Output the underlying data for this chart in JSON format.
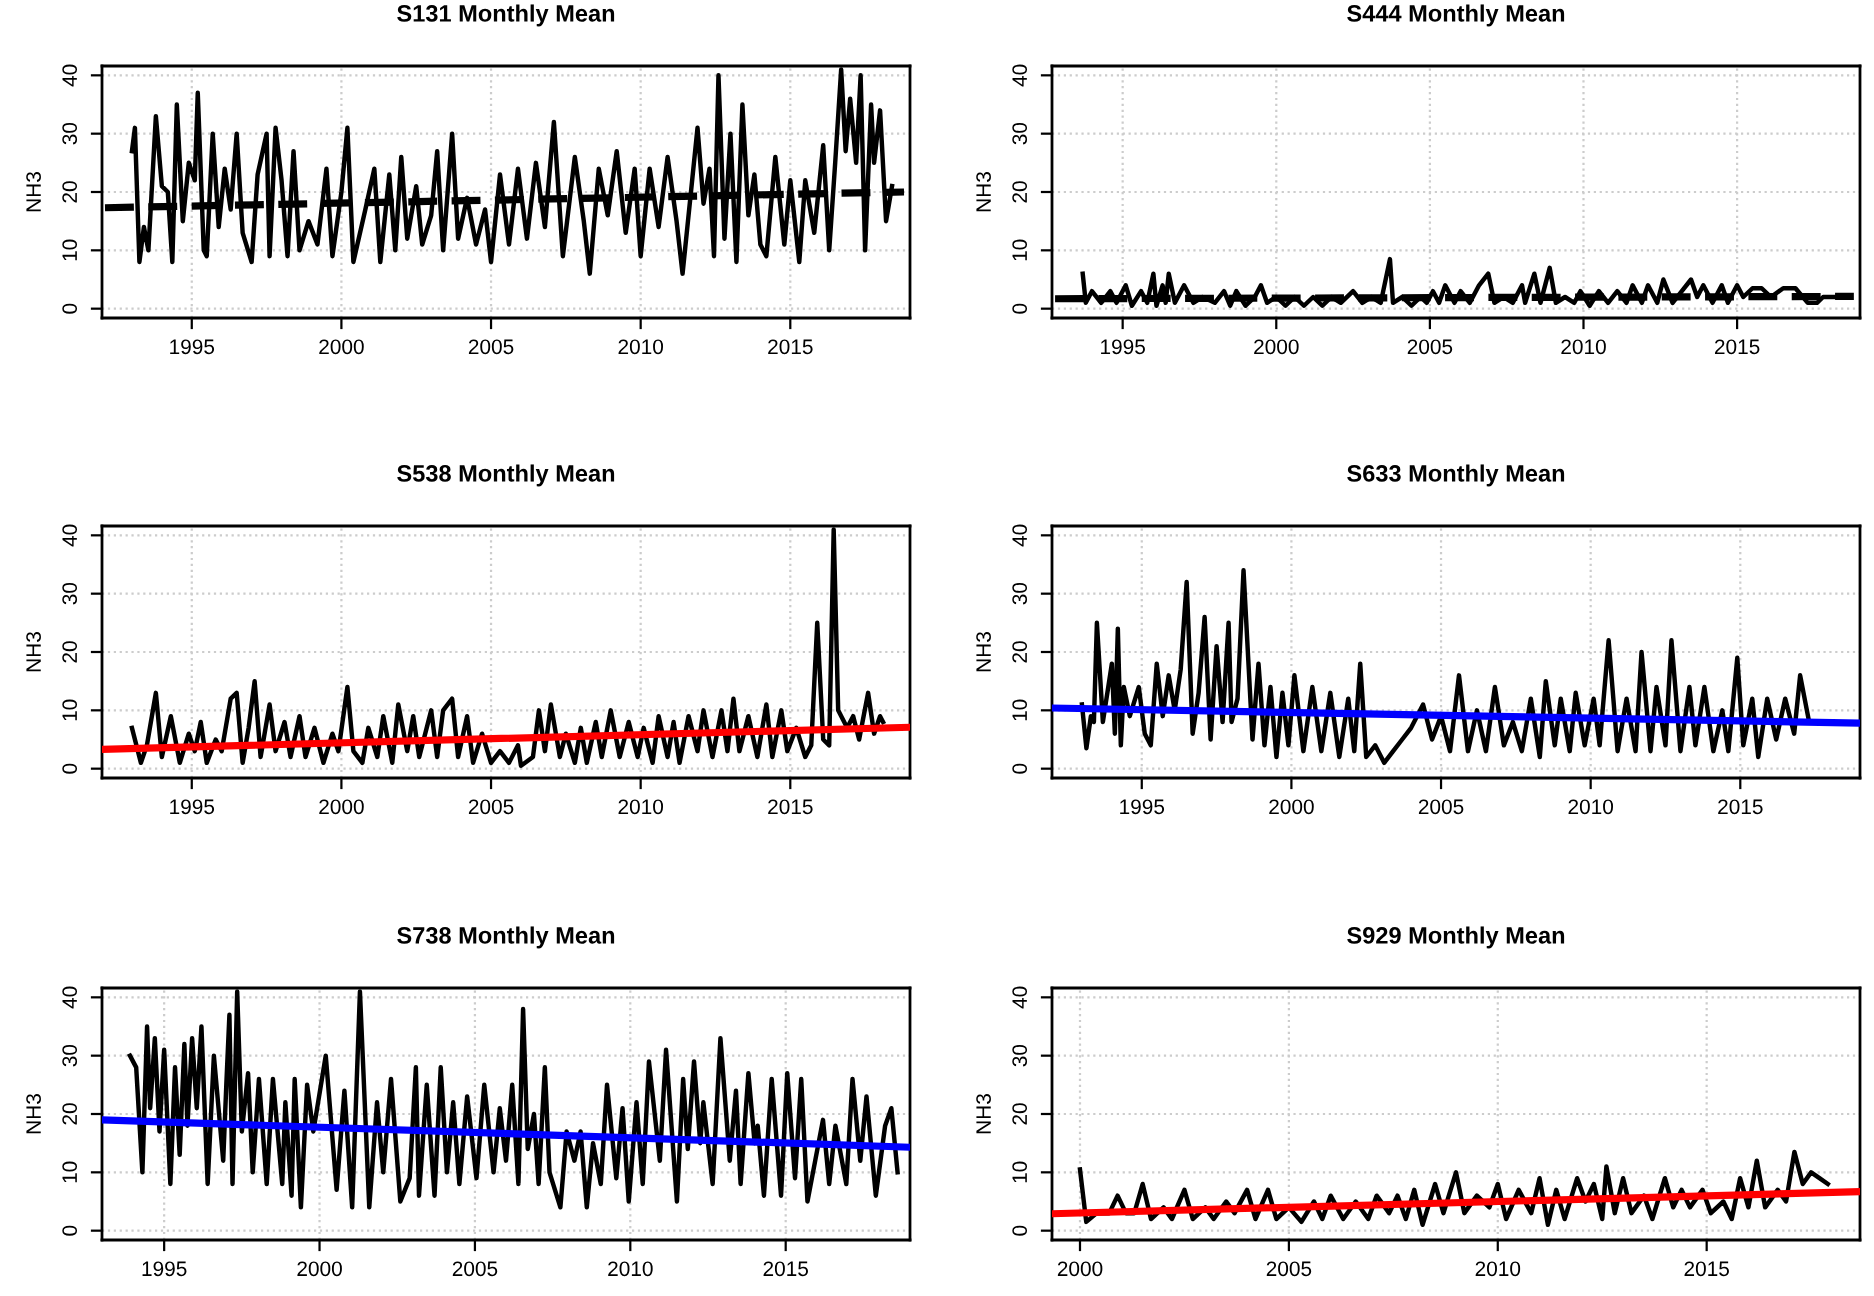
{
  "chart_data": [
    {
      "type": "line",
      "title": "S131 Monthly Mean",
      "ylabel": "NH3",
      "xlim": [
        1992.0,
        2019.0
      ],
      "ylim": [
        -1.6,
        41.6
      ],
      "xticks": [
        1995,
        2000,
        2005,
        2010,
        2015
      ],
      "yticks": [
        0,
        10,
        20,
        30,
        40
      ],
      "grid": true,
      "series": [
        {
          "color": "#000000",
          "line_style": "dashed",
          "x": [
            1992.1,
            2018.8
          ],
          "values": [
            17.3,
            20
          ]
        },
        {
          "color": "#000000",
          "line_style": "solid",
          "x": [
            1993.0,
            1993.1,
            1993.25,
            1993.4,
            1993.55,
            1993.8,
            1994.0,
            1994.2,
            1994.35,
            1994.5,
            1994.7,
            1994.9,
            1995.1,
            1995.2,
            1995.4,
            1995.5,
            1995.7,
            1995.9,
            1996.1,
            1996.3,
            1996.5,
            1996.7,
            1997.0,
            1997.2,
            1997.5,
            1997.6,
            1997.8,
            1998.0,
            1998.2,
            1998.4,
            1998.6,
            1998.9,
            1999.2,
            1999.5,
            1999.7,
            2000.0,
            2000.2,
            2000.4,
            2000.8,
            2001.1,
            2001.3,
            2001.6,
            2001.8,
            2002.0,
            2002.2,
            2002.5,
            2002.7,
            2003.0,
            2003.2,
            2003.4,
            2003.7,
            2003.9,
            2004.2,
            2004.5,
            2004.8,
            2005.0,
            2005.3,
            2005.6,
            2005.9,
            2006.2,
            2006.5,
            2006.8,
            2007.1,
            2007.4,
            2007.8,
            2008.1,
            2008.3,
            2008.6,
            2008.9,
            2009.2,
            2009.5,
            2009.8,
            2010.0,
            2010.3,
            2010.6,
            2010.9,
            2011.2,
            2011.4,
            2011.7,
            2011.9,
            2012.1,
            2012.3,
            2012.45,
            2012.6,
            2012.8,
            2013.0,
            2013.2,
            2013.4,
            2013.6,
            2013.8,
            2014.0,
            2014.2,
            2014.5,
            2014.8,
            2015.0,
            2015.3,
            2015.5,
            2015.8,
            2016.1,
            2016.3,
            2016.5,
            2016.7,
            2016.85,
            2017.0,
            2017.2,
            2017.35,
            2017.5,
            2017.7,
            2017.8,
            2018.0,
            2018.2,
            2018.4
          ],
          "values": [
            27,
            31,
            8,
            14,
            10,
            33,
            21,
            20,
            8,
            35,
            15,
            25,
            22,
            37,
            10,
            9,
            30,
            14,
            24,
            17,
            30,
            13,
            8,
            23,
            30,
            9,
            31,
            22,
            9,
            27,
            10,
            15,
            11,
            24,
            9,
            20,
            31,
            8,
            17,
            24,
            8,
            23,
            10,
            26,
            12,
            21,
            11,
            16,
            27,
            10,
            30,
            12,
            19,
            11,
            17,
            8,
            23,
            11,
            24,
            12,
            25,
            14,
            32,
            9,
            26,
            15,
            6,
            24,
            16,
            27,
            13,
            24,
            9,
            24,
            14,
            26,
            15,
            6,
            21,
            31,
            18,
            24,
            9,
            40,
            12,
            30,
            8,
            35,
            16,
            23,
            11,
            9,
            26,
            11,
            22,
            8,
            22,
            13,
            28,
            10,
            25,
            41,
            27,
            36,
            25,
            40,
            10,
            35,
            25,
            34,
            15,
            21
          ]
        }
      ]
    },
    {
      "type": "line",
      "title": "S444 Monthly Mean",
      "ylabel": "NH3",
      "xlim": [
        1992.7,
        2019.0
      ],
      "ylim": [
        -1.6,
        41.6
      ],
      "xticks": [
        1995,
        2000,
        2005,
        2010,
        2015
      ],
      "yticks": [
        0,
        10,
        20,
        30,
        40
      ],
      "grid": true,
      "series": [
        {
          "color": "#000000",
          "line_style": "dashed",
          "x": [
            1992.8,
            2018.8
          ],
          "values": [
            1.7,
            2.1
          ]
        },
        {
          "color": "#000000",
          "line_style": "solid",
          "x": [
            1993.7,
            1993.8,
            1994.0,
            1994.3,
            1994.6,
            1994.8,
            1995.1,
            1995.3,
            1995.6,
            1995.8,
            1996.0,
            1996.1,
            1996.3,
            1996.4,
            1996.5,
            1996.7,
            1997.0,
            1997.3,
            1997.6,
            1998.0,
            1998.3,
            1998.5,
            1998.7,
            1999.0,
            1999.3,
            1999.5,
            1999.7,
            2000.0,
            2000.3,
            2000.6,
            2000.9,
            2001.2,
            2001.5,
            2001.8,
            2002.1,
            2002.5,
            2002.8,
            2003.1,
            2003.4,
            2003.7,
            2003.8,
            2004.1,
            2004.4,
            2004.7,
            2004.9,
            2005.1,
            2005.3,
            2005.5,
            2005.8,
            2006.0,
            2006.3,
            2006.6,
            2006.9,
            2007.1,
            2007.4,
            2007.7,
            2008.0,
            2008.1,
            2008.4,
            2008.6,
            2008.9,
            2009.1,
            2009.4,
            2009.7,
            2009.9,
            2010.2,
            2010.5,
            2010.8,
            2011.1,
            2011.4,
            2011.6,
            2011.9,
            2012.1,
            2012.4,
            2012.6,
            2012.9,
            2013.2,
            2013.5,
            2013.7,
            2013.9,
            2014.2,
            2014.5,
            2014.7,
            2015.0,
            2015.2,
            2015.5,
            2015.8,
            2016.1,
            2016.5,
            2016.9,
            2017.3,
            2017.6,
            2017.8,
            2018.2,
            2018.6
          ],
          "values": [
            6,
            1,
            3,
            1,
            3,
            1,
            4,
            0.5,
            3,
            1,
            6,
            0.5,
            4,
            1,
            6,
            1,
            4,
            1,
            2,
            1,
            3,
            0.5,
            3,
            0.5,
            2,
            4,
            1,
            2,
            0.5,
            2,
            0.5,
            2,
            0.5,
            2,
            1,
            3,
            1,
            2,
            1,
            8.5,
            1,
            2,
            0.5,
            2,
            1,
            3,
            1,
            4,
            1,
            3,
            1,
            4,
            6,
            1,
            2,
            1,
            4,
            1,
            6,
            1,
            7,
            1,
            2,
            1,
            3,
            0.5,
            3,
            1,
            3,
            1,
            4,
            1,
            4,
            1,
            5,
            1,
            3,
            5,
            2,
            4,
            1,
            4,
            1,
            4,
            2,
            3.5,
            3.5,
            2,
            3.5,
            3.5,
            1,
            1,
            2,
            2,
            2
          ]
        }
      ]
    },
    {
      "type": "line",
      "title": "S538 Monthly Mean",
      "ylabel": "NH3",
      "xlim": [
        1992.0,
        2019.0
      ],
      "ylim": [
        -1.6,
        41.6
      ],
      "xticks": [
        1995,
        2000,
        2005,
        2010,
        2015
      ],
      "yticks": [
        0,
        10,
        20,
        30,
        40
      ],
      "grid": true,
      "series": [
        {
          "color": "#000000",
          "line_style": "solid",
          "x": [
            1993.0,
            1993.3,
            1993.5,
            1993.8,
            1994.0,
            1994.3,
            1994.6,
            1994.9,
            1995.1,
            1995.3,
            1995.5,
            1995.8,
            1996.0,
            1996.3,
            1996.5,
            1996.7,
            1996.9,
            1997.1,
            1997.3,
            1997.6,
            1997.8,
            1998.1,
            1998.3,
            1998.6,
            1998.8,
            1999.1,
            1999.4,
            1999.7,
            1999.9,
            2000.2,
            2000.4,
            2000.7,
            2000.9,
            2001.2,
            2001.4,
            2001.7,
            2001.9,
            2002.2,
            2002.4,
            2002.6,
            2003.0,
            2003.2,
            2003.4,
            2003.7,
            2003.9,
            2004.2,
            2004.4,
            2004.7,
            2005.0,
            2005.3,
            2005.6,
            2005.9,
            2006.0,
            2006.4,
            2006.6,
            2006.8,
            2007.0,
            2007.3,
            2007.5,
            2007.8,
            2008.0,
            2008.2,
            2008.5,
            2008.7,
            2009.0,
            2009.3,
            2009.6,
            2009.9,
            2010.1,
            2010.4,
            2010.6,
            2010.9,
            2011.1,
            2011.3,
            2011.6,
            2011.9,
            2012.1,
            2012.4,
            2012.7,
            2012.9,
            2013.1,
            2013.3,
            2013.6,
            2013.9,
            2014.2,
            2014.4,
            2014.7,
            2014.9,
            2015.2,
            2015.5,
            2015.7,
            2015.9,
            2016.1,
            2016.3,
            2016.45,
            2016.6,
            2016.9,
            2017.1,
            2017.3,
            2017.6,
            2017.8,
            2018.0,
            2018.1
          ],
          "values": [
            7,
            1,
            4,
            13,
            2,
            9,
            1,
            6,
            3,
            8,
            1,
            5,
            3,
            12,
            13,
            1,
            7,
            15,
            2,
            11,
            3,
            8,
            2,
            9,
            2,
            7,
            1,
            6,
            3,
            14,
            3,
            1,
            7,
            2,
            9,
            1,
            11,
            3,
            9,
            2,
            10,
            2,
            10,
            12,
            2,
            9,
            1,
            6,
            1,
            3,
            1,
            4,
            0.5,
            2,
            10,
            3,
            11,
            2,
            6,
            1,
            7,
            1,
            8,
            2,
            10,
            2,
            8,
            2,
            7,
            1,
            9,
            2,
            8,
            1,
            9,
            3,
            10,
            2,
            10,
            3,
            12,
            3,
            9,
            2,
            11,
            2,
            10,
            3,
            7,
            2,
            4,
            25,
            5,
            4,
            41,
            10,
            7,
            9,
            5,
            13,
            6,
            9,
            8
          ]
        },
        {
          "color": "#ff0000",
          "line_style": "solid",
          "x": [
            1992.0,
            2019.0
          ],
          "values": [
            3.3,
            7.1
          ]
        }
      ]
    },
    {
      "type": "line",
      "title": "S633 Monthly Mean",
      "ylabel": "NH3",
      "xlim": [
        1992.0,
        2019.0
      ],
      "ylim": [
        -1.6,
        41.6
      ],
      "xticks": [
        1995,
        2000,
        2005,
        2010,
        2015
      ],
      "yticks": [
        0,
        10,
        20,
        30,
        40
      ],
      "grid": true,
      "series": [
        {
          "color": "#000000",
          "line_style": "solid",
          "x": [
            1993.0,
            1993.15,
            1993.3,
            1993.4,
            1993.5,
            1993.7,
            1994.0,
            1994.1,
            1994.2,
            1994.3,
            1994.4,
            1994.6,
            1994.9,
            1995.1,
            1995.3,
            1995.5,
            1995.7,
            1995.9,
            1996.1,
            1996.3,
            1996.5,
            1996.7,
            1996.9,
            1997.1,
            1997.3,
            1997.5,
            1997.7,
            1997.9,
            1998.0,
            1998.2,
            1998.4,
            1998.7,
            1998.9,
            1999.1,
            1999.3,
            1999.5,
            1999.7,
            1999.9,
            2000.1,
            2000.4,
            2000.7,
            2001.0,
            2001.3,
            2001.6,
            2001.9,
            2002.1,
            2002.3,
            2002.5,
            2002.8,
            2003.1,
            2003.4,
            2003.7,
            2004.0,
            2004.4,
            2004.7,
            2005.0,
            2005.3,
            2005.6,
            2005.9,
            2006.2,
            2006.5,
            2006.8,
            2007.1,
            2007.4,
            2007.7,
            2008.0,
            2008.3,
            2008.5,
            2008.8,
            2009.0,
            2009.3,
            2009.5,
            2009.8,
            2010.1,
            2010.3,
            2010.6,
            2010.9,
            2011.2,
            2011.5,
            2011.7,
            2012.0,
            2012.2,
            2012.5,
            2012.7,
            2013.0,
            2013.3,
            2013.5,
            2013.8,
            2014.1,
            2014.4,
            2014.6,
            2014.9,
            2015.1,
            2015.4,
            2015.6,
            2015.9,
            2016.2,
            2016.5,
            2016.8,
            2017.0,
            2017.3
          ],
          "values": [
            11,
            3.5,
            9,
            8,
            25,
            8,
            18,
            6,
            24,
            4,
            14,
            9,
            14,
            6,
            4,
            18,
            9,
            16,
            10,
            17,
            32,
            6,
            13,
            26,
            5,
            21,
            8,
            25,
            8,
            12,
            34,
            5,
            18,
            4,
            14,
            2,
            13,
            4,
            16,
            3,
            14,
            3,
            13,
            2,
            12,
            3,
            18,
            2,
            4,
            1,
            3,
            5,
            7,
            11,
            5,
            9,
            3,
            16,
            3,
            10,
            3,
            14,
            4,
            8,
            3,
            12,
            2,
            15,
            4,
            12,
            3,
            13,
            4,
            12,
            4,
            22,
            3,
            12,
            3,
            20,
            3,
            14,
            4,
            22,
            3,
            14,
            4,
            14,
            3,
            10,
            3,
            19,
            4,
            12,
            2,
            12,
            5,
            12,
            6,
            16,
            8
          ]
        },
        {
          "color": "#0000ff",
          "line_style": "solid",
          "x": [
            1992.0,
            2019.0
          ],
          "values": [
            10.4,
            7.8
          ]
        }
      ]
    },
    {
      "type": "line",
      "title": "S738 Monthly Mean",
      "ylabel": "NH3",
      "xlim": [
        1993.0,
        2019.0
      ],
      "ylim": [
        -1.6,
        41.6
      ],
      "xticks": [
        1995,
        2000,
        2005,
        2010,
        2015
      ],
      "yticks": [
        0,
        10,
        20,
        30,
        40
      ],
      "grid": true,
      "series": [
        {
          "color": "#000000",
          "line_style": "solid",
          "x": [
            1993.9,
            1994.1,
            1994.3,
            1994.45,
            1994.55,
            1994.7,
            1994.85,
            1995.0,
            1995.2,
            1995.35,
            1995.5,
            1995.65,
            1995.75,
            1995.9,
            1996.05,
            1996.2,
            1996.4,
            1996.6,
            1996.9,
            1997.0,
            1997.1,
            1997.2,
            1997.35,
            1997.5,
            1997.7,
            1997.85,
            1998.05,
            1998.3,
            1998.5,
            1998.8,
            1998.9,
            1999.1,
            1999.2,
            1999.4,
            1999.6,
            1999.8,
            2000.2,
            2000.55,
            2000.8,
            2001.05,
            2001.3,
            2001.6,
            2001.85,
            2002.05,
            2002.3,
            2002.6,
            2002.9,
            2003.1,
            2003.2,
            2003.45,
            2003.7,
            2003.9,
            2004.1,
            2004.3,
            2004.5,
            2004.75,
            2005.05,
            2005.3,
            2005.6,
            2005.8,
            2006.0,
            2006.2,
            2006.4,
            2006.55,
            2006.7,
            2006.9,
            2007.05,
            2007.25,
            2007.4,
            2007.75,
            2007.95,
            2008.2,
            2008.4,
            2008.6,
            2008.8,
            2009.05,
            2009.25,
            2009.55,
            2009.75,
            2009.95,
            2010.2,
            2010.4,
            2010.6,
            2010.95,
            2011.15,
            2011.5,
            2011.7,
            2011.85,
            2012.05,
            2012.25,
            2012.35,
            2012.65,
            2012.9,
            2013.2,
            2013.4,
            2013.55,
            2013.8,
            2014.0,
            2014.1,
            2014.3,
            2014.55,
            2014.85,
            2015.05,
            2015.3,
            2015.5,
            2015.7,
            2015.95,
            2016.2,
            2016.4,
            2016.6,
            2016.95,
            2017.15,
            2017.4,
            2017.6,
            2017.9,
            2018.2,
            2018.4,
            2018.6
          ],
          "values": [
            30,
            28,
            10,
            35,
            21,
            33,
            17,
            31,
            8,
            28,
            13,
            32,
            18,
            33,
            21,
            35,
            8,
            30,
            12,
            25,
            37,
            8,
            41,
            17,
            27,
            10,
            26,
            8,
            26,
            8,
            22,
            6,
            26,
            4,
            25,
            17,
            30,
            7,
            24,
            4,
            41,
            4,
            22,
            10,
            26,
            5,
            9,
            28,
            6,
            25,
            6,
            28,
            10,
            22,
            8,
            23,
            9,
            25,
            10,
            21,
            12,
            25,
            8,
            38,
            14,
            20,
            8,
            28,
            10,
            4,
            17,
            12,
            17,
            4,
            15,
            8,
            25,
            9,
            21,
            5,
            22,
            8,
            29,
            12,
            31,
            5,
            26,
            14,
            29,
            15,
            22,
            8,
            33,
            12,
            24,
            8,
            27,
            15,
            18,
            6,
            26,
            6,
            27,
            9,
            26,
            5,
            12,
            19,
            8,
            18,
            8,
            26,
            12,
            23,
            6,
            18,
            21,
            10
          ]
        },
        {
          "color": "#0000ff",
          "line_style": "solid",
          "x": [
            1993.0,
            2019.0
          ],
          "values": [
            19,
            14.3
          ]
        }
      ]
    },
    {
      "type": "line",
      "title": "S929 Monthly Mean",
      "ylabel": "NH3",
      "xlim": [
        1999.33,
        2018.67
      ],
      "ylim": [
        -1.6,
        41.6
      ],
      "xticks": [
        2000,
        2005,
        2010,
        2015
      ],
      "yticks": [
        0,
        10,
        20,
        30,
        40
      ],
      "grid": true,
      "series": [
        {
          "color": "#000000",
          "line_style": "solid",
          "x": [
            2000.0,
            2000.15,
            2000.4,
            2000.7,
            2000.9,
            2001.1,
            2001.3,
            2001.5,
            2001.7,
            2002.0,
            2002.2,
            2002.5,
            2002.7,
            2003.0,
            2003.2,
            2003.5,
            2003.7,
            2004.0,
            2004.2,
            2004.5,
            2004.7,
            2005.0,
            2005.3,
            2005.6,
            2005.8,
            2006.0,
            2006.3,
            2006.6,
            2006.9,
            2007.1,
            2007.4,
            2007.6,
            2007.8,
            2008.0,
            2008.2,
            2008.5,
            2008.7,
            2009.0,
            2009.2,
            2009.5,
            2009.8,
            2010.0,
            2010.2,
            2010.5,
            2010.8,
            2011.0,
            2011.2,
            2011.4,
            2011.6,
            2011.9,
            2012.1,
            2012.3,
            2012.5,
            2012.6,
            2012.8,
            2013.0,
            2013.2,
            2013.5,
            2013.7,
            2014.0,
            2014.2,
            2014.4,
            2014.6,
            2014.9,
            2015.1,
            2015.4,
            2015.6,
            2015.8,
            2016.0,
            2016.2,
            2016.4,
            2016.7,
            2016.9,
            2017.1,
            2017.3,
            2017.5,
            2017.7,
            2017.9
          ],
          "values": [
            10.5,
            1.5,
            3,
            3,
            6,
            3,
            3,
            8,
            2,
            4,
            2,
            7,
            2,
            4,
            2,
            5,
            3,
            7,
            2,
            7,
            2,
            4,
            1.5,
            5,
            2,
            6,
            2,
            5,
            2,
            6,
            3,
            6,
            2,
            7,
            1,
            8,
            3,
            10,
            3,
            6,
            4,
            8,
            2,
            7,
            3,
            9,
            1,
            7,
            2,
            9,
            5,
            8,
            2,
            11,
            3,
            9,
            3,
            6,
            2,
            9,
            4,
            7,
            4,
            7,
            3,
            5,
            2,
            9,
            4,
            12,
            4,
            7,
            5,
            13.5,
            8,
            10,
            9,
            8
          ]
        },
        {
          "color": "#ff0000",
          "line_style": "solid",
          "x": [
            1999.33,
            2018.67
          ],
          "values": [
            2.9,
            6.7
          ]
        }
      ]
    }
  ]
}
